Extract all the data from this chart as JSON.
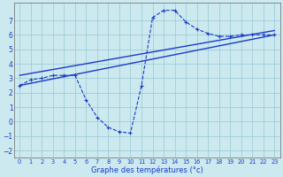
{
  "xlabel": "Graphe des températures (°c)",
  "background_color": "#cce9ef",
  "grid_color": "#9fcdd6",
  "line_color": "#1a3ac8",
  "xlim": [
    -0.5,
    23.5
  ],
  "ylim": [
    -2.5,
    8.2
  ],
  "yticks": [
    -2,
    -1,
    0,
    1,
    2,
    3,
    4,
    5,
    6,
    7
  ],
  "xticks": [
    0,
    1,
    2,
    3,
    4,
    5,
    6,
    7,
    8,
    9,
    10,
    11,
    12,
    13,
    14,
    15,
    16,
    17,
    18,
    19,
    20,
    21,
    22,
    23
  ],
  "curve_x": [
    0,
    1,
    2,
    3,
    4,
    5,
    6,
    7,
    8,
    9,
    10,
    11,
    12,
    13,
    14,
    15,
    16,
    17,
    18,
    19,
    20,
    21,
    22,
    23
  ],
  "curve_y": [
    2.5,
    2.9,
    3.0,
    3.2,
    3.2,
    3.2,
    1.5,
    0.3,
    -0.4,
    -0.7,
    -0.8,
    2.5,
    7.2,
    7.7,
    7.7,
    6.9,
    6.4,
    6.1,
    5.9,
    5.9,
    6.0,
    6.0,
    6.0,
    6.0
  ],
  "line1_x": [
    0,
    23
  ],
  "line1_y": [
    2.5,
    6.0
  ],
  "line2_x": [
    0,
    23
  ],
  "line2_y": [
    3.2,
    6.3
  ]
}
